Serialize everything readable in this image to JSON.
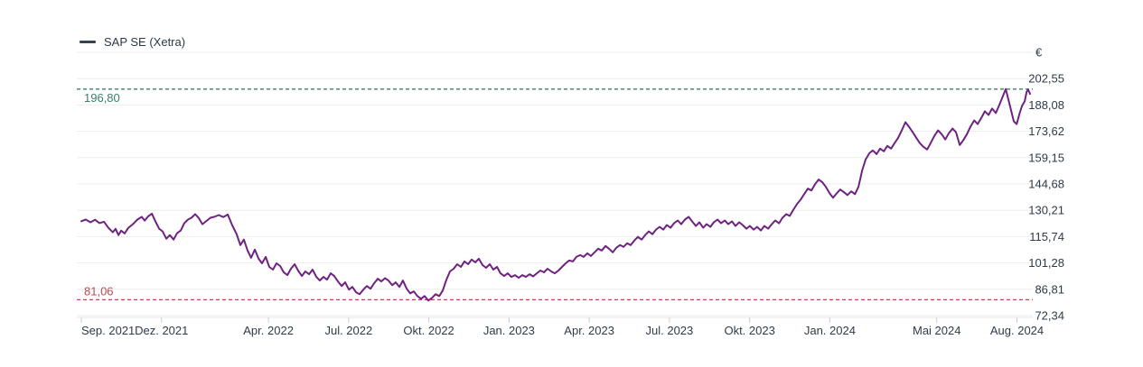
{
  "legend": {
    "series_label": "SAP SE (Xetra)"
  },
  "colors": {
    "line": "#6f2380",
    "legend_swatch": "#3a434d",
    "grid": "#ededed",
    "axis_line": "#e4e6e9",
    "tick": "#c9ced4",
    "axis_text": "#2e3b48",
    "high_marker": "#3a8068",
    "low_marker": "#bb4a4e",
    "background": "#ffffff"
  },
  "chart_data": {
    "type": "line",
    "title": "SAP SE (Xetra)",
    "legend_position": "top-left",
    "grid": true,
    "y_axis": {
      "unit": "€",
      "unit_value": 217.02,
      "min": 72.34,
      "max": 217.02,
      "tick_values": [
        202.55,
        188.08,
        173.62,
        159.15,
        144.68,
        130.21,
        115.74,
        101.28,
        86.81,
        72.34
      ],
      "tick_labels": [
        "202,55",
        "188,08",
        "173,62",
        "159,15",
        "144,68",
        "130,21",
        "115,74",
        "101,28",
        "86,81",
        "72,34"
      ]
    },
    "x_axis": {
      "span_months": 35.49,
      "start": "Sep. 2021",
      "ticks": [
        {
          "m": 0,
          "label": "Sep. 2021"
        },
        {
          "m": 3,
          "label": "Dez. 2021"
        },
        {
          "m": 7,
          "label": "Apr. 2022"
        },
        {
          "m": 10,
          "label": "Jul. 2022"
        },
        {
          "m": 13,
          "label": "Okt. 2022"
        },
        {
          "m": 16,
          "label": "Jan. 2023"
        },
        {
          "m": 19,
          "label": "Apr. 2023"
        },
        {
          "m": 22,
          "label": "Jul. 2023"
        },
        {
          "m": 25,
          "label": "Okt. 2023"
        },
        {
          "m": 28,
          "label": "Jan. 2024"
        },
        {
          "m": 32,
          "label": "Mai 2024"
        },
        {
          "m": 35,
          "label": "Aug. 2024"
        }
      ]
    },
    "markers": {
      "high": {
        "value": 196.8,
        "label": "196,80"
      },
      "low": {
        "value": 81.06,
        "label": "81,06"
      }
    },
    "series": [
      {
        "name": "SAP SE (Xetra)",
        "points": [
          [
            0,
            124.2
          ],
          [
            0.17,
            125.1
          ],
          [
            0.34,
            123.6
          ],
          [
            0.51,
            125.0
          ],
          [
            0.68,
            123.2
          ],
          [
            0.85,
            123.9
          ],
          [
            1.01,
            120.6
          ],
          [
            1.18,
            118.1
          ],
          [
            1.28,
            120.0
          ],
          [
            1.39,
            116.6
          ],
          [
            1.49,
            119.0
          ],
          [
            1.62,
            117.5
          ],
          [
            1.76,
            120.6
          ],
          [
            1.93,
            122.6
          ],
          [
            2.1,
            125.1
          ],
          [
            2.26,
            126.6
          ],
          [
            2.37,
            124.5
          ],
          [
            2.5,
            126.9
          ],
          [
            2.64,
            128.4
          ],
          [
            2.77,
            124.1
          ],
          [
            2.91,
            120.1
          ],
          [
            3.04,
            118.6
          ],
          [
            3.18,
            114.6
          ],
          [
            3.31,
            116.6
          ],
          [
            3.45,
            114.1
          ],
          [
            3.58,
            117.6
          ],
          [
            3.72,
            119.1
          ],
          [
            3.85,
            123.1
          ],
          [
            3.99,
            125.1
          ],
          [
            4.12,
            126.1
          ],
          [
            4.26,
            128.1
          ],
          [
            4.39,
            126.0
          ],
          [
            4.53,
            122.6
          ],
          [
            4.66,
            124.1
          ],
          [
            4.83,
            126.1
          ],
          [
            4.97,
            126.6
          ],
          [
            5.14,
            127.6
          ],
          [
            5.31,
            126.5
          ],
          [
            5.48,
            127.9
          ],
          [
            5.64,
            122.1
          ],
          [
            5.81,
            117.1
          ],
          [
            5.95,
            111.1
          ],
          [
            6.08,
            114.1
          ],
          [
            6.22,
            108.1
          ],
          [
            6.35,
            104.1
          ],
          [
            6.49,
            108.6
          ],
          [
            6.63,
            103.6
          ],
          [
            6.76,
            101.1
          ],
          [
            6.9,
            104.6
          ],
          [
            7.03,
            99.1
          ],
          [
            7.17,
            97.6
          ],
          [
            7.3,
            101.1
          ],
          [
            7.44,
            99.6
          ],
          [
            7.57,
            96.1
          ],
          [
            7.71,
            94.6
          ],
          [
            7.84,
            98.1
          ],
          [
            7.98,
            100.6
          ],
          [
            8.11,
            97.1
          ],
          [
            8.25,
            94.1
          ],
          [
            8.38,
            96.6
          ],
          [
            8.52,
            95.1
          ],
          [
            8.65,
            97.6
          ],
          [
            8.79,
            93.6
          ],
          [
            8.92,
            91.6
          ],
          [
            9.06,
            93.6
          ],
          [
            9.19,
            92.1
          ],
          [
            9.33,
            95.6
          ],
          [
            9.46,
            94.1
          ],
          [
            9.6,
            91.1
          ],
          [
            9.74,
            88.6
          ],
          [
            9.87,
            90.6
          ],
          [
            10.01,
            86.6
          ],
          [
            10.14,
            88.1
          ],
          [
            10.28,
            85.1
          ],
          [
            10.41,
            84.1
          ],
          [
            10.55,
            86.6
          ],
          [
            10.68,
            88.6
          ],
          [
            10.82,
            87.1
          ],
          [
            10.95,
            90.1
          ],
          [
            11.09,
            92.6
          ],
          [
            11.22,
            91.1
          ],
          [
            11.36,
            92.9
          ],
          [
            11.49,
            91.6
          ],
          [
            11.63,
            89.1
          ],
          [
            11.76,
            90.6
          ],
          [
            11.9,
            88.1
          ],
          [
            12.03,
            91.6
          ],
          [
            12.17,
            87.1
          ],
          [
            12.3,
            84.6
          ],
          [
            12.44,
            85.6
          ],
          [
            12.57,
            83.1
          ],
          [
            12.71,
            81.6
          ],
          [
            12.84,
            83.1
          ],
          [
            12.98,
            80.6
          ],
          [
            13.12,
            82.1
          ],
          [
            13.25,
            84.1
          ],
          [
            13.39,
            83.1
          ],
          [
            13.52,
            86.1
          ],
          [
            13.66,
            92.1
          ],
          [
            13.79,
            96.6
          ],
          [
            13.93,
            98.1
          ],
          [
            14.06,
            100.6
          ],
          [
            14.2,
            99.1
          ],
          [
            14.33,
            102.1
          ],
          [
            14.47,
            100.6
          ],
          [
            14.6,
            103.1
          ],
          [
            14.74,
            101.6
          ],
          [
            14.87,
            103.6
          ],
          [
            15.01,
            100.1
          ],
          [
            15.14,
            98.6
          ],
          [
            15.28,
            100.6
          ],
          [
            15.41,
            97.6
          ],
          [
            15.55,
            99.1
          ],
          [
            15.68,
            95.6
          ],
          [
            15.82,
            94.1
          ],
          [
            15.95,
            95.6
          ],
          [
            16.09,
            93.6
          ],
          [
            16.22,
            94.6
          ],
          [
            16.36,
            93.1
          ],
          [
            16.5,
            94.6
          ],
          [
            16.63,
            93.6
          ],
          [
            16.77,
            95.1
          ],
          [
            16.9,
            93.9
          ],
          [
            17.04,
            95.6
          ],
          [
            17.17,
            97.1
          ],
          [
            17.31,
            96.1
          ],
          [
            17.44,
            98.1
          ],
          [
            17.58,
            96.6
          ],
          [
            17.71,
            95.6
          ],
          [
            17.85,
            97.1
          ],
          [
            17.98,
            99.1
          ],
          [
            18.12,
            101.1
          ],
          [
            18.25,
            102.6
          ],
          [
            18.39,
            102.1
          ],
          [
            18.52,
            104.6
          ],
          [
            18.66,
            105.6
          ],
          [
            18.79,
            104.6
          ],
          [
            18.93,
            106.6
          ],
          [
            19.06,
            105.1
          ],
          [
            19.2,
            107.1
          ],
          [
            19.33,
            109.1
          ],
          [
            19.47,
            108.1
          ],
          [
            19.61,
            110.6
          ],
          [
            19.74,
            109.1
          ],
          [
            19.88,
            107.1
          ],
          [
            20.01,
            109.6
          ],
          [
            20.15,
            111.1
          ],
          [
            20.28,
            110.1
          ],
          [
            20.42,
            112.1
          ],
          [
            20.55,
            111.1
          ],
          [
            20.69,
            113.6
          ],
          [
            20.82,
            115.6
          ],
          [
            20.96,
            114.1
          ],
          [
            21.09,
            116.6
          ],
          [
            21.23,
            118.6
          ],
          [
            21.36,
            117.1
          ],
          [
            21.5,
            119.6
          ],
          [
            21.63,
            121.1
          ],
          [
            21.77,
            119.6
          ],
          [
            21.9,
            122.1
          ],
          [
            22.04,
            120.6
          ],
          [
            22.17,
            123.1
          ],
          [
            22.31,
            124.6
          ],
          [
            22.44,
            122.6
          ],
          [
            22.58,
            125.1
          ],
          [
            22.72,
            126.6
          ],
          [
            22.85,
            124.1
          ],
          [
            22.99,
            121.6
          ],
          [
            23.12,
            123.6
          ],
          [
            23.26,
            120.6
          ],
          [
            23.39,
            122.6
          ],
          [
            23.53,
            121.1
          ],
          [
            23.66,
            123.6
          ],
          [
            23.8,
            125.1
          ],
          [
            23.93,
            123.1
          ],
          [
            24.07,
            124.6
          ],
          [
            24.2,
            122.6
          ],
          [
            24.34,
            124.1
          ],
          [
            24.47,
            121.6
          ],
          [
            24.61,
            123.6
          ],
          [
            24.74,
            122.1
          ],
          [
            24.88,
            120.1
          ],
          [
            25.01,
            121.6
          ],
          [
            25.15,
            119.6
          ],
          [
            25.28,
            121.1
          ],
          [
            25.42,
            119.1
          ],
          [
            25.55,
            121.6
          ],
          [
            25.69,
            120.1
          ],
          [
            25.83,
            122.6
          ],
          [
            25.96,
            124.6
          ],
          [
            26.1,
            123.1
          ],
          [
            26.23,
            126.1
          ],
          [
            26.37,
            128.1
          ],
          [
            26.5,
            127.1
          ],
          [
            26.64,
            130.6
          ],
          [
            26.77,
            133.6
          ],
          [
            26.91,
            136.1
          ],
          [
            27.04,
            139.1
          ],
          [
            27.18,
            142.1
          ],
          [
            27.31,
            141.1
          ],
          [
            27.45,
            144.6
          ],
          [
            27.58,
            147.1
          ],
          [
            27.72,
            145.6
          ],
          [
            27.85,
            143.1
          ],
          [
            27.99,
            139.6
          ],
          [
            28.12,
            137.1
          ],
          [
            28.26,
            139.6
          ],
          [
            28.39,
            141.6
          ],
          [
            28.53,
            140.1
          ],
          [
            28.66,
            138.6
          ],
          [
            28.8,
            140.6
          ],
          [
            28.94,
            139.1
          ],
          [
            29.07,
            143.1
          ],
          [
            29.21,
            152.1
          ],
          [
            29.34,
            158.1
          ],
          [
            29.48,
            161.6
          ],
          [
            29.61,
            163.1
          ],
          [
            29.75,
            161.1
          ],
          [
            29.88,
            164.1
          ],
          [
            30.02,
            162.6
          ],
          [
            30.15,
            165.6
          ],
          [
            30.29,
            164.1
          ],
          [
            30.42,
            167.1
          ],
          [
            30.56,
            170.1
          ],
          [
            30.69,
            174.1
          ],
          [
            30.83,
            178.6
          ],
          [
            30.96,
            176.1
          ],
          [
            31.1,
            173.1
          ],
          [
            31.23,
            170.1
          ],
          [
            31.37,
            167.1
          ],
          [
            31.5,
            165.1
          ],
          [
            31.64,
            163.6
          ],
          [
            31.77,
            167.1
          ],
          [
            31.91,
            171.1
          ],
          [
            32.05,
            174.1
          ],
          [
            32.18,
            172.1
          ],
          [
            32.32,
            169.1
          ],
          [
            32.45,
            172.6
          ],
          [
            32.59,
            175.1
          ],
          [
            32.72,
            173.1
          ],
          [
            32.86,
            166.1
          ],
          [
            32.99,
            168.6
          ],
          [
            33.13,
            172.1
          ],
          [
            33.26,
            176.1
          ],
          [
            33.4,
            179.6
          ],
          [
            33.53,
            177.6
          ],
          [
            33.67,
            181.1
          ],
          [
            33.8,
            184.6
          ],
          [
            33.94,
            182.6
          ],
          [
            34.07,
            186.1
          ],
          [
            34.21,
            183.6
          ],
          [
            34.34,
            188.1
          ],
          [
            34.48,
            193.1
          ],
          [
            34.58,
            196.8
          ],
          [
            34.68,
            191.1
          ],
          [
            34.78,
            185.1
          ],
          [
            34.88,
            179.1
          ],
          [
            34.99,
            177.6
          ],
          [
            35.09,
            183.1
          ],
          [
            35.19,
            187.6
          ],
          [
            35.29,
            190.1
          ],
          [
            35.36,
            195.3
          ],
          [
            35.42,
            196.5
          ],
          [
            35.49,
            194.2
          ]
        ]
      }
    ]
  }
}
